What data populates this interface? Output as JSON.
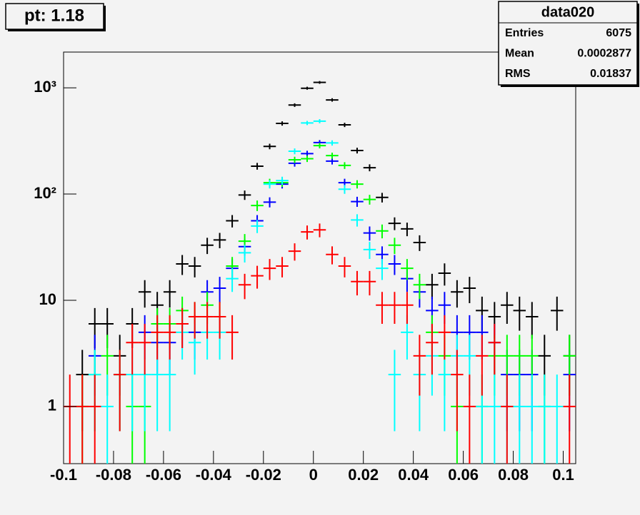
{
  "chart_data": {
    "type": "histogram-errors",
    "title": "pt: 1.18",
    "log_y": true,
    "bins": [
      -0.1,
      -0.095,
      -0.09,
      -0.085,
      -0.08,
      -0.075,
      -0.07,
      -0.065,
      -0.06,
      -0.055,
      -0.05,
      -0.045,
      -0.04,
      -0.035,
      -0.03,
      -0.025,
      -0.02,
      -0.015,
      -0.01,
      -0.005,
      0,
      0.005,
      0.01,
      0.015,
      0.02,
      0.025,
      0.03,
      0.035,
      0.04,
      0.045,
      0.05,
      0.055,
      0.06,
      0.065,
      0.07,
      0.075,
      0.08,
      0.085,
      0.09,
      0.095,
      0.1,
      0.105
    ],
    "series": [
      {
        "color": "#000000",
        "values": [
          null,
          2,
          6,
          6,
          3,
          6,
          12,
          9,
          12,
          22,
          21,
          33,
          37,
          56,
          98,
          183,
          281,
          462,
          688,
          991,
          1125,
          769,
          448,
          257,
          177,
          93,
          53,
          47,
          35,
          14,
          18,
          12,
          13,
          8,
          7,
          9,
          8,
          7,
          3,
          8,
          3
        ]
      },
      {
        "color": "#0000ff",
        "values": [
          null,
          null,
          3,
          null,
          null,
          null,
          5,
          4,
          4,
          6,
          5,
          12,
          13,
          20,
          32,
          56,
          84,
          124,
          195,
          240,
          305,
          204,
          128,
          85,
          43,
          27,
          22,
          16,
          12,
          8,
          9,
          5,
          5,
          5,
          4,
          2,
          2,
          2,
          null,
          null,
          2
        ]
      },
      {
        "color": "#00ff00",
        "values": [
          null,
          1,
          2,
          3,
          2,
          1,
          1,
          6,
          6,
          8,
          7,
          9,
          7,
          21,
          36,
          78,
          128,
          128,
          210,
          215,
          286,
          230,
          186,
          124,
          89,
          45,
          33,
          20,
          14,
          5,
          3,
          1,
          null,
          1,
          3,
          3,
          3,
          3,
          1,
          null,
          3
        ]
      },
      {
        "color": "#00ffff",
        "values": [
          null,
          null,
          2,
          1,
          2,
          2,
          2,
          2,
          2,
          5,
          4,
          5,
          5,
          16,
          28,
          50,
          124,
          134,
          253,
          467,
          485,
          303,
          111,
          57,
          30,
          20,
          2,
          5,
          2,
          3,
          2,
          3,
          3,
          1,
          1,
          1,
          1,
          1,
          1,
          1,
          null
        ]
      },
      {
        "color": "#ff0000",
        "values": [
          1,
          1,
          1,
          null,
          2,
          4,
          4,
          5,
          5,
          6,
          7,
          7,
          7,
          5,
          14,
          17,
          20,
          21,
          29,
          44,
          46,
          27,
          21,
          15,
          15,
          9,
          9,
          9,
          3,
          4,
          5,
          2,
          1,
          3,
          4,
          1,
          null,
          null,
          null,
          null,
          1
        ]
      }
    ],
    "xlim": [
      -0.1,
      0.105
    ],
    "xticks": [
      -0.1,
      -0.08,
      -0.06,
      -0.04,
      -0.02,
      0,
      0.02,
      0.04,
      0.06,
      0.08,
      0.1
    ],
    "ylim": [
      0.29,
      2170
    ],
    "yticks": [
      1,
      10,
      {
        "value": 100,
        "label": "10²"
      },
      {
        "value": 1000,
        "label": "10³"
      }
    ],
    "stats": {
      "title": "data020",
      "rows": [
        {
          "name": "Entries",
          "value": 6075
        },
        {
          "name": "Mean",
          "value": 0.0002877
        },
        {
          "name": "RMS",
          "value": 0.01837
        }
      ]
    }
  }
}
